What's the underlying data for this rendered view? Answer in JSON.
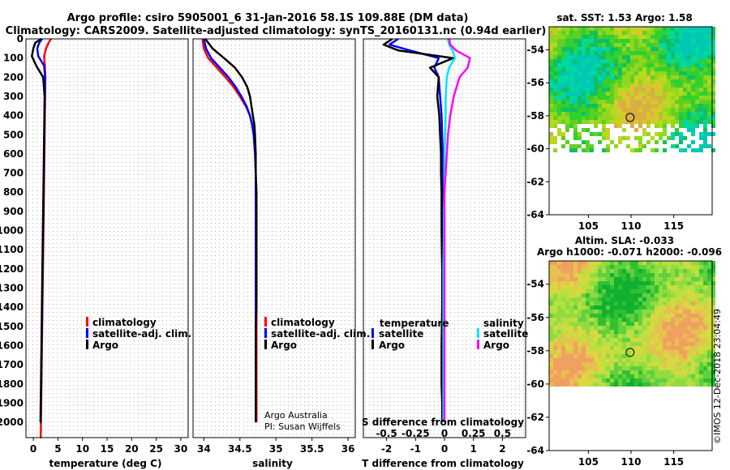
{
  "header": {
    "title_line1": "Argo profile: csiro 5905001_6 31-Jan-2016 58.1S 109.88E (DM data)",
    "title_line2": "Climatology: CARS2009. Satellite-adjusted climatology: synTS_20160131.nc (0.94d earlier)"
  },
  "credits": {
    "line1": "Argo Australia",
    "line2": "PI: Susan Wijffels",
    "imos": "©IMOS 12-Dec-2018 23:04:49"
  },
  "colors": {
    "climatology": "#ff0000",
    "satellite": "#0000ff",
    "argo": "#000000",
    "satellite_salinity": "#00e5ff",
    "argo_salinity": "#ff00ff"
  },
  "depth_ticks": [
    "0",
    "100",
    "200",
    "300",
    "400",
    "500",
    "600",
    "700",
    "800",
    "900",
    "1000",
    "1100",
    "1200",
    "1300",
    "1400",
    "1500",
    "1600",
    "1700",
    "1800",
    "1900",
    "2000"
  ],
  "chart_data": [
    {
      "type": "line",
      "id": "temperature",
      "xlabel": "temperature (deg C)",
      "ylabel": "",
      "xlim": [
        -1.5,
        31.5
      ],
      "ylim": [
        2080,
        0
      ],
      "x_ticks": [
        "0",
        "5",
        "10",
        "15",
        "20",
        "25",
        "30"
      ],
      "x_tick_values": [
        0,
        5,
        10,
        15,
        20,
        25,
        30
      ],
      "legend": [
        "climatology",
        "satellite-adj. clim.",
        "Argo"
      ],
      "series": [
        {
          "name": "climatology",
          "color": "#ff0000",
          "x": [
            3.6,
            3.1,
            2.6,
            2.2,
            2.35,
            2.45,
            2.4,
            2.35,
            2.3,
            2.25,
            2.2,
            2.15,
            2.1,
            2.05,
            2.0,
            1.95,
            1.9,
            1.85,
            1.8,
            1.75,
            1.7,
            1.65,
            1.6,
            1.55,
            1.5,
            1.45,
            1.45,
            1.4,
            1.4,
            1.4
          ],
          "y": [
            0,
            20,
            50,
            90,
            140,
            200,
            300,
            400,
            500,
            600,
            700,
            800,
            900,
            1000,
            1100,
            1200,
            1300,
            1400,
            1500,
            1600,
            1700,
            1800,
            1900,
            2000,
            2080,
            2080,
            2080,
            2080,
            2080,
            2080
          ]
        },
        {
          "name": "satellite-adj. clim.",
          "color": "#0000ff",
          "x": [
            1.8,
            1.2,
            0.8,
            1.0,
            2.2,
            2.4,
            2.35,
            2.3,
            2.25,
            2.2,
            2.15,
            2.1,
            2.05,
            2.0,
            1.95,
            1.9,
            1.85,
            1.8,
            1.75,
            1.7,
            1.65,
            1.6,
            1.55,
            1.5,
            1.45,
            1.4,
            1.35
          ],
          "y": [
            0,
            20,
            50,
            90,
            140,
            200,
            300,
            400,
            500,
            600,
            700,
            800,
            900,
            1000,
            1100,
            1200,
            1300,
            1400,
            1500,
            1600,
            1700,
            1800,
            1900,
            2000,
            2000,
            2000,
            2000
          ]
        },
        {
          "name": "Argo",
          "color": "#000000",
          "x": [
            1.6,
            0.4,
            0.0,
            -0.3,
            0.6,
            2.0,
            2.3,
            2.25,
            2.2,
            2.15,
            2.1,
            2.05,
            2.0,
            1.95,
            1.9,
            1.85,
            1.8,
            1.75,
            1.7,
            1.65,
            1.6,
            1.55,
            1.5,
            1.45
          ],
          "y": [
            0,
            20,
            50,
            90,
            140,
            200,
            300,
            400,
            500,
            600,
            700,
            800,
            900,
            1000,
            1100,
            1200,
            1300,
            1400,
            1500,
            1600,
            1700,
            1800,
            1900,
            2000
          ]
        }
      ]
    },
    {
      "type": "line",
      "id": "salinity",
      "xlabel": "salinity",
      "ylabel": "",
      "xlim": [
        33.85,
        36.1
      ],
      "ylim": [
        2080,
        0
      ],
      "x_ticks": [
        "34",
        "34.5",
        "35",
        "35.5",
        "36"
      ],
      "x_tick_values": [
        34,
        34.5,
        35,
        35.5,
        36
      ],
      "legend": [
        "climatology",
        "satellite-adj. clim.",
        "Argo"
      ],
      "series": [
        {
          "name": "climatology",
          "color": "#ff0000",
          "x": [
            33.98,
            34.0,
            34.06,
            34.18,
            34.3,
            34.41,
            34.5,
            34.58,
            34.64,
            34.67,
            34.7,
            34.71,
            34.72,
            34.72,
            34.73,
            34.73,
            34.73,
            34.73,
            34.73,
            34.73,
            34.73,
            34.73,
            34.73,
            34.73,
            34.73
          ],
          "y": [
            0,
            50,
            100,
            150,
            200,
            250,
            300,
            350,
            400,
            450,
            500,
            600,
            700,
            800,
            900,
            1000,
            1100,
            1200,
            1300,
            1400,
            1500,
            1600,
            1700,
            1800,
            2000
          ]
        },
        {
          "name": "satellite-adj. clim.",
          "color": "#0000ff",
          "x": [
            34.0,
            34.03,
            34.1,
            34.22,
            34.34,
            34.44,
            34.52,
            34.59,
            34.64,
            34.67,
            34.69,
            34.71,
            34.72,
            34.72,
            34.72,
            34.72,
            34.72,
            34.72,
            34.72,
            34.72,
            34.72,
            34.72,
            34.72,
            34.72,
            34.72
          ],
          "y": [
            0,
            50,
            100,
            150,
            200,
            250,
            300,
            350,
            400,
            450,
            500,
            600,
            700,
            800,
            900,
            1000,
            1100,
            1200,
            1300,
            1400,
            1500,
            1600,
            1700,
            1800,
            2000
          ]
        },
        {
          "name": "Argo",
          "color": "#000000",
          "x": [
            34.02,
            34.12,
            34.28,
            34.43,
            34.53,
            34.6,
            34.64,
            34.66,
            34.68,
            34.7,
            34.71,
            34.72,
            34.72,
            34.73,
            34.73,
            34.73,
            34.73,
            34.73,
            34.73,
            34.73,
            34.72,
            34.72,
            34.72,
            34.72,
            34.72
          ],
          "y": [
            0,
            50,
            100,
            150,
            200,
            250,
            300,
            350,
            400,
            450,
            500,
            600,
            700,
            800,
            900,
            1000,
            1100,
            1200,
            1300,
            1400,
            1500,
            1600,
            1700,
            1800,
            2000
          ]
        }
      ]
    },
    {
      "type": "line",
      "id": "difference",
      "xlabel": "T difference from climatology",
      "secondary_xlabel": "S difference from climatology",
      "xlim": [
        -2.8,
        2.8
      ],
      "secondary_xlim": [
        -0.7,
        0.7
      ],
      "ylim": [
        2080,
        0
      ],
      "x_ticks": [
        "-2",
        "-1",
        "0",
        "1",
        "2"
      ],
      "x_tick_values": [
        -2,
        -1,
        0,
        1,
        2
      ],
      "secondary_ticks": [
        "-0.5",
        "-0.25",
        "0",
        "0.25",
        "0.5"
      ],
      "secondary_tick_values": [
        -0.5,
        -0.25,
        0,
        0.25,
        0.5
      ],
      "legend_temperature": {
        "title": "temperature",
        "items": [
          "satellite",
          "Argo"
        ]
      },
      "legend_salinity": {
        "title": "salinity",
        "items": [
          "satellite",
          "Argo"
        ]
      },
      "series": [
        {
          "name": "temperature satellite",
          "color": "#0000ff",
          "axis": "T",
          "x": [
            -1.6,
            -1.9,
            -1.2,
            -0.2,
            -0.35,
            -0.2,
            -0.15,
            -0.1,
            -0.08,
            -0.06,
            -0.05,
            -0.05,
            -0.05,
            -0.05,
            -0.04,
            -0.04,
            -0.03,
            -0.03,
            -0.02,
            -0.02
          ],
          "y": [
            0,
            30,
            60,
            100,
            150,
            200,
            300,
            400,
            500,
            600,
            700,
            800,
            900,
            1000,
            1200,
            1400,
            1600,
            1800,
            1900,
            2000
          ]
        },
        {
          "name": "temperature Argo",
          "color": "#000000",
          "x": [
            -1.8,
            -2.1,
            -1.6,
            0.3,
            -0.5,
            -0.2,
            -0.25,
            -0.18,
            -0.15,
            -0.12,
            -0.12,
            -0.1,
            -0.1,
            -0.1,
            -0.08,
            -0.08,
            -0.1,
            -0.1,
            -0.08,
            -0.08
          ],
          "axis": "T",
          "y": [
            0,
            30,
            60,
            100,
            150,
            200,
            300,
            400,
            500,
            600,
            700,
            800,
            900,
            1000,
            1200,
            1400,
            1600,
            1800,
            1900,
            2000
          ]
        },
        {
          "name": "salinity satellite",
          "color": "#00e5ff",
          "axis": "S",
          "x": [
            0.03,
            0.04,
            0.07,
            0.09,
            0.04,
            0.02,
            0.01,
            0.01,
            0.005,
            0.0,
            0.0,
            0.0,
            -0.005,
            -0.005,
            -0.01,
            -0.01,
            -0.01,
            -0.01,
            -0.01,
            -0.01
          ],
          "y": [
            0,
            30,
            60,
            100,
            150,
            200,
            300,
            400,
            500,
            600,
            700,
            800,
            900,
            1000,
            1200,
            1400,
            1600,
            1800,
            1900,
            2000
          ]
        },
        {
          "name": "salinity Argo",
          "color": "#ff00ff",
          "axis": "S",
          "x": [
            0.04,
            0.05,
            0.1,
            0.22,
            0.2,
            0.13,
            0.08,
            0.05,
            0.03,
            0.02,
            0.01,
            0.0,
            0.0,
            0.0,
            0.0,
            0.0,
            0.0,
            0.0,
            0.0,
            0.0
          ],
          "y": [
            0,
            30,
            60,
            100,
            150,
            200,
            300,
            400,
            500,
            600,
            700,
            800,
            900,
            1000,
            1200,
            1400,
            1600,
            1800,
            1900,
            2000
          ]
        }
      ]
    },
    {
      "type": "heatmap",
      "id": "sst_map",
      "title": "sat. SST: 1.53 Argo: 1.58",
      "xlim": [
        100.4,
        119.5
      ],
      "ylim": [
        -64,
        -52.6
      ],
      "x_ticks": [
        "105",
        "110",
        "115"
      ],
      "x_tick_values": [
        105,
        110,
        115
      ],
      "y_ticks": [
        "-54",
        "-56",
        "-58",
        "-60",
        "-62",
        "-64"
      ],
      "y_tick_values": [
        -54,
        -56,
        -58,
        -60,
        -62,
        -64
      ],
      "data_extent_lat": [
        -60,
        -52.6
      ],
      "marker": {
        "lon": 109.88,
        "lat": -58.1
      }
    },
    {
      "type": "heatmap",
      "id": "sla_map",
      "title": "Altim. SLA: -0.033",
      "subtitle": "Argo h1000: -0.071 h2000: -0.096",
      "xlim": [
        100.4,
        119.5
      ],
      "ylim": [
        -64,
        -52.6
      ],
      "x_ticks": [
        "105",
        "110",
        "115"
      ],
      "x_tick_values": [
        105,
        110,
        115
      ],
      "y_ticks": [
        "-54",
        "-56",
        "-58",
        "-60",
        "-62",
        "-64"
      ],
      "y_tick_values": [
        -54,
        -56,
        -58,
        -60,
        -62,
        -64
      ],
      "data_extent_lat": [
        -60,
        -52.6
      ],
      "marker": {
        "lon": 109.88,
        "lat": -58.1
      }
    }
  ]
}
